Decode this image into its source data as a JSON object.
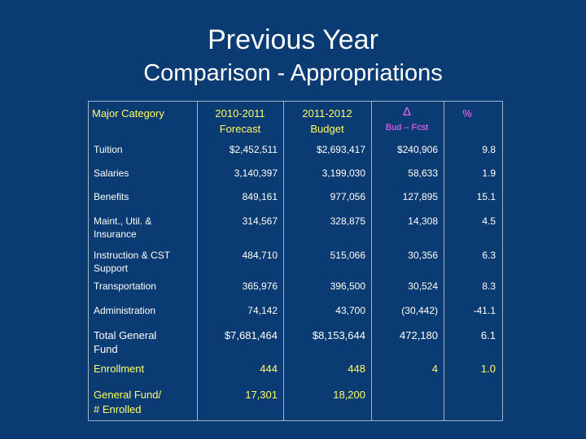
{
  "slide": {
    "title_line1": "Previous Year",
    "title_line2": "Comparison - Appropriations"
  },
  "table": {
    "headers": {
      "category": "Major Category",
      "forecast_line1": "2010-2011",
      "forecast_line2": "Forecast",
      "budget_line1": "2011-2012",
      "budget_line2": "Budget",
      "delta_symbol": "Δ",
      "delta_sub": "Bud – Fcst",
      "percent": "%"
    },
    "rows": [
      {
        "category_line1": "Tuition",
        "category_line2": "",
        "forecast": "$2,452,511",
        "budget": "$2,693,417",
        "delta": "$240,906",
        "percent": "9.8"
      },
      {
        "category_line1": "Salaries",
        "category_line2": "",
        "forecast": "3,140,397",
        "budget": "3,199,030",
        "delta": "58,633",
        "percent": "1.9"
      },
      {
        "category_line1": "Benefits",
        "category_line2": "",
        "forecast": "849,161",
        "budget": "977,056",
        "delta": "127,895",
        "percent": "15.1"
      },
      {
        "category_line1": "Maint., Util. &",
        "category_line2": "Insurance",
        "forecast": "314,567",
        "budget": "328,875",
        "delta": "14,308",
        "percent": "4.5"
      },
      {
        "category_line1": "Instruction & CST",
        "category_line2": "Support",
        "forecast": "484,710",
        "budget": "515,066",
        "delta": "30,356",
        "percent": "6.3"
      },
      {
        "category_line1": "Transportation",
        "category_line2": "",
        "forecast": "365,976",
        "budget": "396,500",
        "delta": "30,524",
        "percent": "8.3"
      },
      {
        "category_line1": "Administration",
        "category_line2": "",
        "forecast": "74,142",
        "budget": "43,700",
        "delta": "(30,442)",
        "percent": "-41.1"
      },
      {
        "category_line1": "Total General",
        "category_line2": "Fund",
        "forecast": "$7,681,464",
        "budget": "$8,153,644",
        "delta": "472,180",
        "percent": "6.1"
      },
      {
        "category_line1": "Enrollment",
        "category_line2": "",
        "forecast": "444",
        "budget": "448",
        "delta": "4",
        "percent": "1.0"
      },
      {
        "category_line1": "General Fund/",
        "category_line2": "# Enrolled",
        "forecast": "17,301",
        "budget": "18,200",
        "delta": "",
        "percent": ""
      }
    ]
  }
}
